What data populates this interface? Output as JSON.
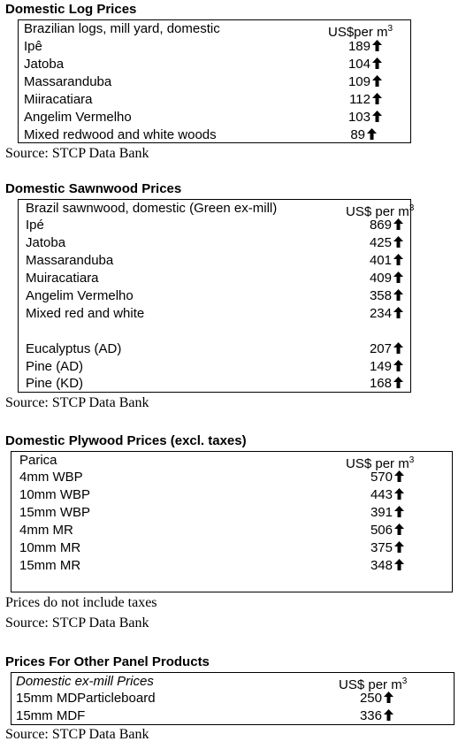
{
  "sections": [
    {
      "title": "Domestic Log Prices",
      "header": {
        "label": "Brazilian logs, mill yard, domestic",
        "unit": "US$per m",
        "unit_sup": "3"
      },
      "rows": [
        {
          "label": "Ipê",
          "value": "189",
          "trend": "up"
        },
        {
          "label": "Jatoba",
          "value": "104",
          "trend": "up"
        },
        {
          "label": "Massaranduba",
          "value": "109",
          "trend": "up"
        },
        {
          "label": "Miiracatiara",
          "value": "112",
          "trend": "up"
        },
        {
          "label": "Angelim Vermelho",
          "value": "103",
          "trend": "up"
        },
        {
          "label": "Mixed redwood and white woods",
          "value": "89",
          "trend": "up"
        }
      ],
      "notes": [
        "Source: STCP Data Bank"
      ]
    },
    {
      "title": "Domestic Sawnwood Prices",
      "header": {
        "label": "Brazil sawnwood, domestic (Green ex-mill)",
        "unit": "US$ per m",
        "unit_sup": "3"
      },
      "rows": [
        {
          "label": "Ipé",
          "value": "869",
          "trend": "up"
        },
        {
          "label": "Jatoba",
          "value": "425",
          "trend": "up"
        },
        {
          "label": "Massaranduba",
          "value": "401",
          "trend": "up"
        },
        {
          "label": "Muiracatiara",
          "value": "409",
          "trend": "up"
        },
        {
          "label": "Angelim Vermelho",
          "value": "358",
          "trend": "up"
        },
        {
          "label": "Mixed red and white",
          "value": "234",
          "trend": "up"
        },
        {
          "label": "Eucalyptus (AD)",
          "value": "207",
          "trend": "up"
        },
        {
          "label": "Pine (AD)",
          "value": "149",
          "trend": "up"
        },
        {
          "label": "Pine (KD)",
          "value": "168",
          "trend": "up"
        }
      ],
      "notes": [
        "Source: STCP Data Bank"
      ]
    },
    {
      "title": "Domestic Plywood Prices (excl. taxes)",
      "header": {
        "label": "Parica",
        "unit": "US$ per m",
        "unit_sup": "3"
      },
      "rows": [
        {
          "label": "4mm WBP",
          "value": "570",
          "trend": "up"
        },
        {
          "label": "10mm WBP",
          "value": "443",
          "trend": "up"
        },
        {
          "label": "15mm WBP",
          "value": "391",
          "trend": "up"
        },
        {
          "label": "4mm MR",
          "value": "506",
          "trend": "up"
        },
        {
          "label": "10mm MR",
          "value": "375",
          "trend": "up"
        },
        {
          "label": "15mm MR",
          "value": "348",
          "trend": "up"
        }
      ],
      "notes": [
        "Prices do not include taxes",
        "Source: STCP Data Bank"
      ]
    },
    {
      "title": "Prices For Other Panel Products",
      "header": {
        "label": "Domestic ex-mill Prices",
        "unit": "US$ per m",
        "unit_sup": "3"
      },
      "rows": [
        {
          "label": "15mm MDParticleboard",
          "value": "250",
          "trend": "up"
        },
        {
          "label": "15mm MDF",
          "value": "336",
          "trend": "up"
        }
      ],
      "notes": [
        "Source: STCP Data Bank"
      ]
    }
  ]
}
